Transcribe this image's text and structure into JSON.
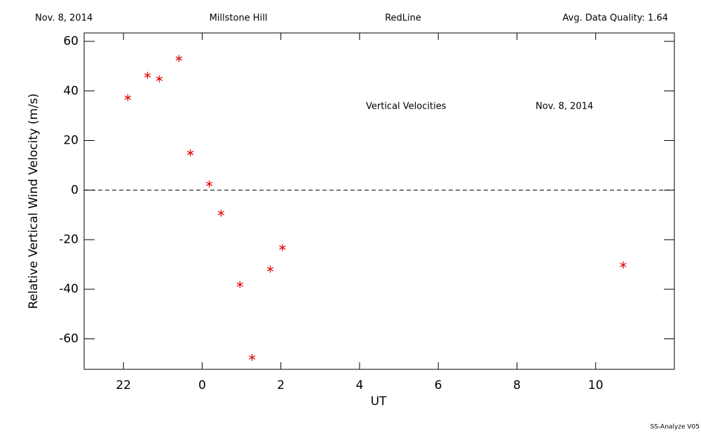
{
  "header": {
    "date": "Nov. 8, 2014",
    "site": "Millstone Hill",
    "line": "RedLine",
    "quality": "Avg. Data Quality: 1.64"
  },
  "footer": "SS-Analyze V05",
  "chart_data": {
    "type": "scatter",
    "x_label": "UT",
    "y_label": "Relative Vertical Wind Velocity (m/s)",
    "annotations": [
      "Vertical Velocities",
      "Nov. 8, 2014"
    ],
    "series": [
      {
        "name": "Vertical Velocities",
        "color": "#e00000",
        "x": [
          -1.89,
          -1.39,
          -1.09,
          -0.59,
          -0.3,
          0.18,
          0.48,
          0.96,
          1.27,
          1.73,
          2.04,
          10.7
        ],
        "values": [
          37.3,
          46.3,
          44.9,
          53.1,
          15.0,
          2.5,
          -9.3,
          -38.1,
          -67.5,
          -31.9,
          -23.2,
          -30.2
        ]
      }
    ],
    "xlim": [
      -3,
      12
    ],
    "xticks": [
      {
        "value": -2,
        "label": "22"
      },
      0,
      2,
      4,
      6,
      8,
      10
    ],
    "ylim": [
      -72.3,
      63.4
    ],
    "yticks": [
      -60,
      -40,
      -20,
      0,
      20,
      40,
      60
    ],
    "reference_line": 0,
    "grid": false
  }
}
